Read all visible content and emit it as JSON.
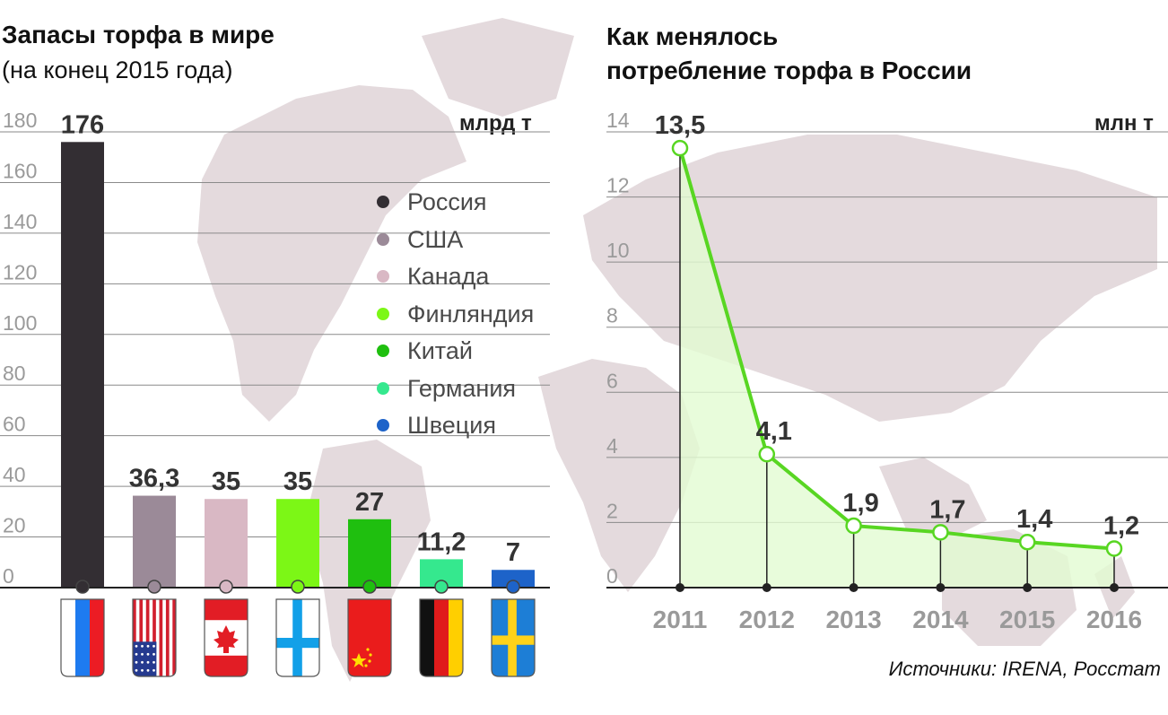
{
  "left_chart": {
    "title": "Запасы торфа в мире",
    "subtitle": "(на конец 2015 года)",
    "unit": "млрд т"
  },
  "right_chart": {
    "title_line1": "Как менялось",
    "title_line2": "потребление торфа в России",
    "unit": "млн т"
  },
  "source": "Источники: IRENA, Росстат",
  "colors": {
    "russia": "#332e33",
    "usa": "#9b8a98",
    "canada": "#d9b8c4",
    "finland": "#7cf716",
    "china": "#1fbf0f",
    "germany": "#35e88e",
    "sweden": "#1d63c9",
    "map": "#e4dadd",
    "line": "#58d622",
    "area": "#e2fbd2"
  },
  "chart_data": [
    {
      "type": "bar",
      "categories": [
        "Россия",
        "США",
        "Канада",
        "Финляндия",
        "Китай",
        "Германия",
        "Швеция"
      ],
      "values": [
        176,
        36.3,
        35,
        35,
        27,
        11.2,
        7
      ],
      "value_labels": [
        "176",
        "36,3",
        "35",
        "35",
        "27",
        "11,2",
        "7"
      ],
      "yticks": [
        "0",
        "20",
        "40",
        "60",
        "80",
        "100",
        "120",
        "140",
        "160",
        "180"
      ],
      "ylim": [
        0,
        180
      ],
      "flags": [
        "russia-flag",
        "usa-flag",
        "canada-flag",
        "finland-flag",
        "china-flag",
        "germany-flag",
        "sweden-flag"
      ],
      "legend_position": "right"
    },
    {
      "type": "line",
      "x": [
        "2011",
        "2012",
        "2013",
        "2014",
        "2015",
        "2016"
      ],
      "values": [
        13.5,
        4.1,
        1.9,
        1.7,
        1.4,
        1.2
      ],
      "value_labels": [
        "13,5",
        "4,1",
        "1,9",
        "1,7",
        "1,4",
        "1,2"
      ],
      "yticks": [
        "0",
        "2",
        "4",
        "6",
        "8",
        "10",
        "12",
        "14"
      ],
      "ylim": [
        0,
        14
      ],
      "fill": "area"
    }
  ]
}
